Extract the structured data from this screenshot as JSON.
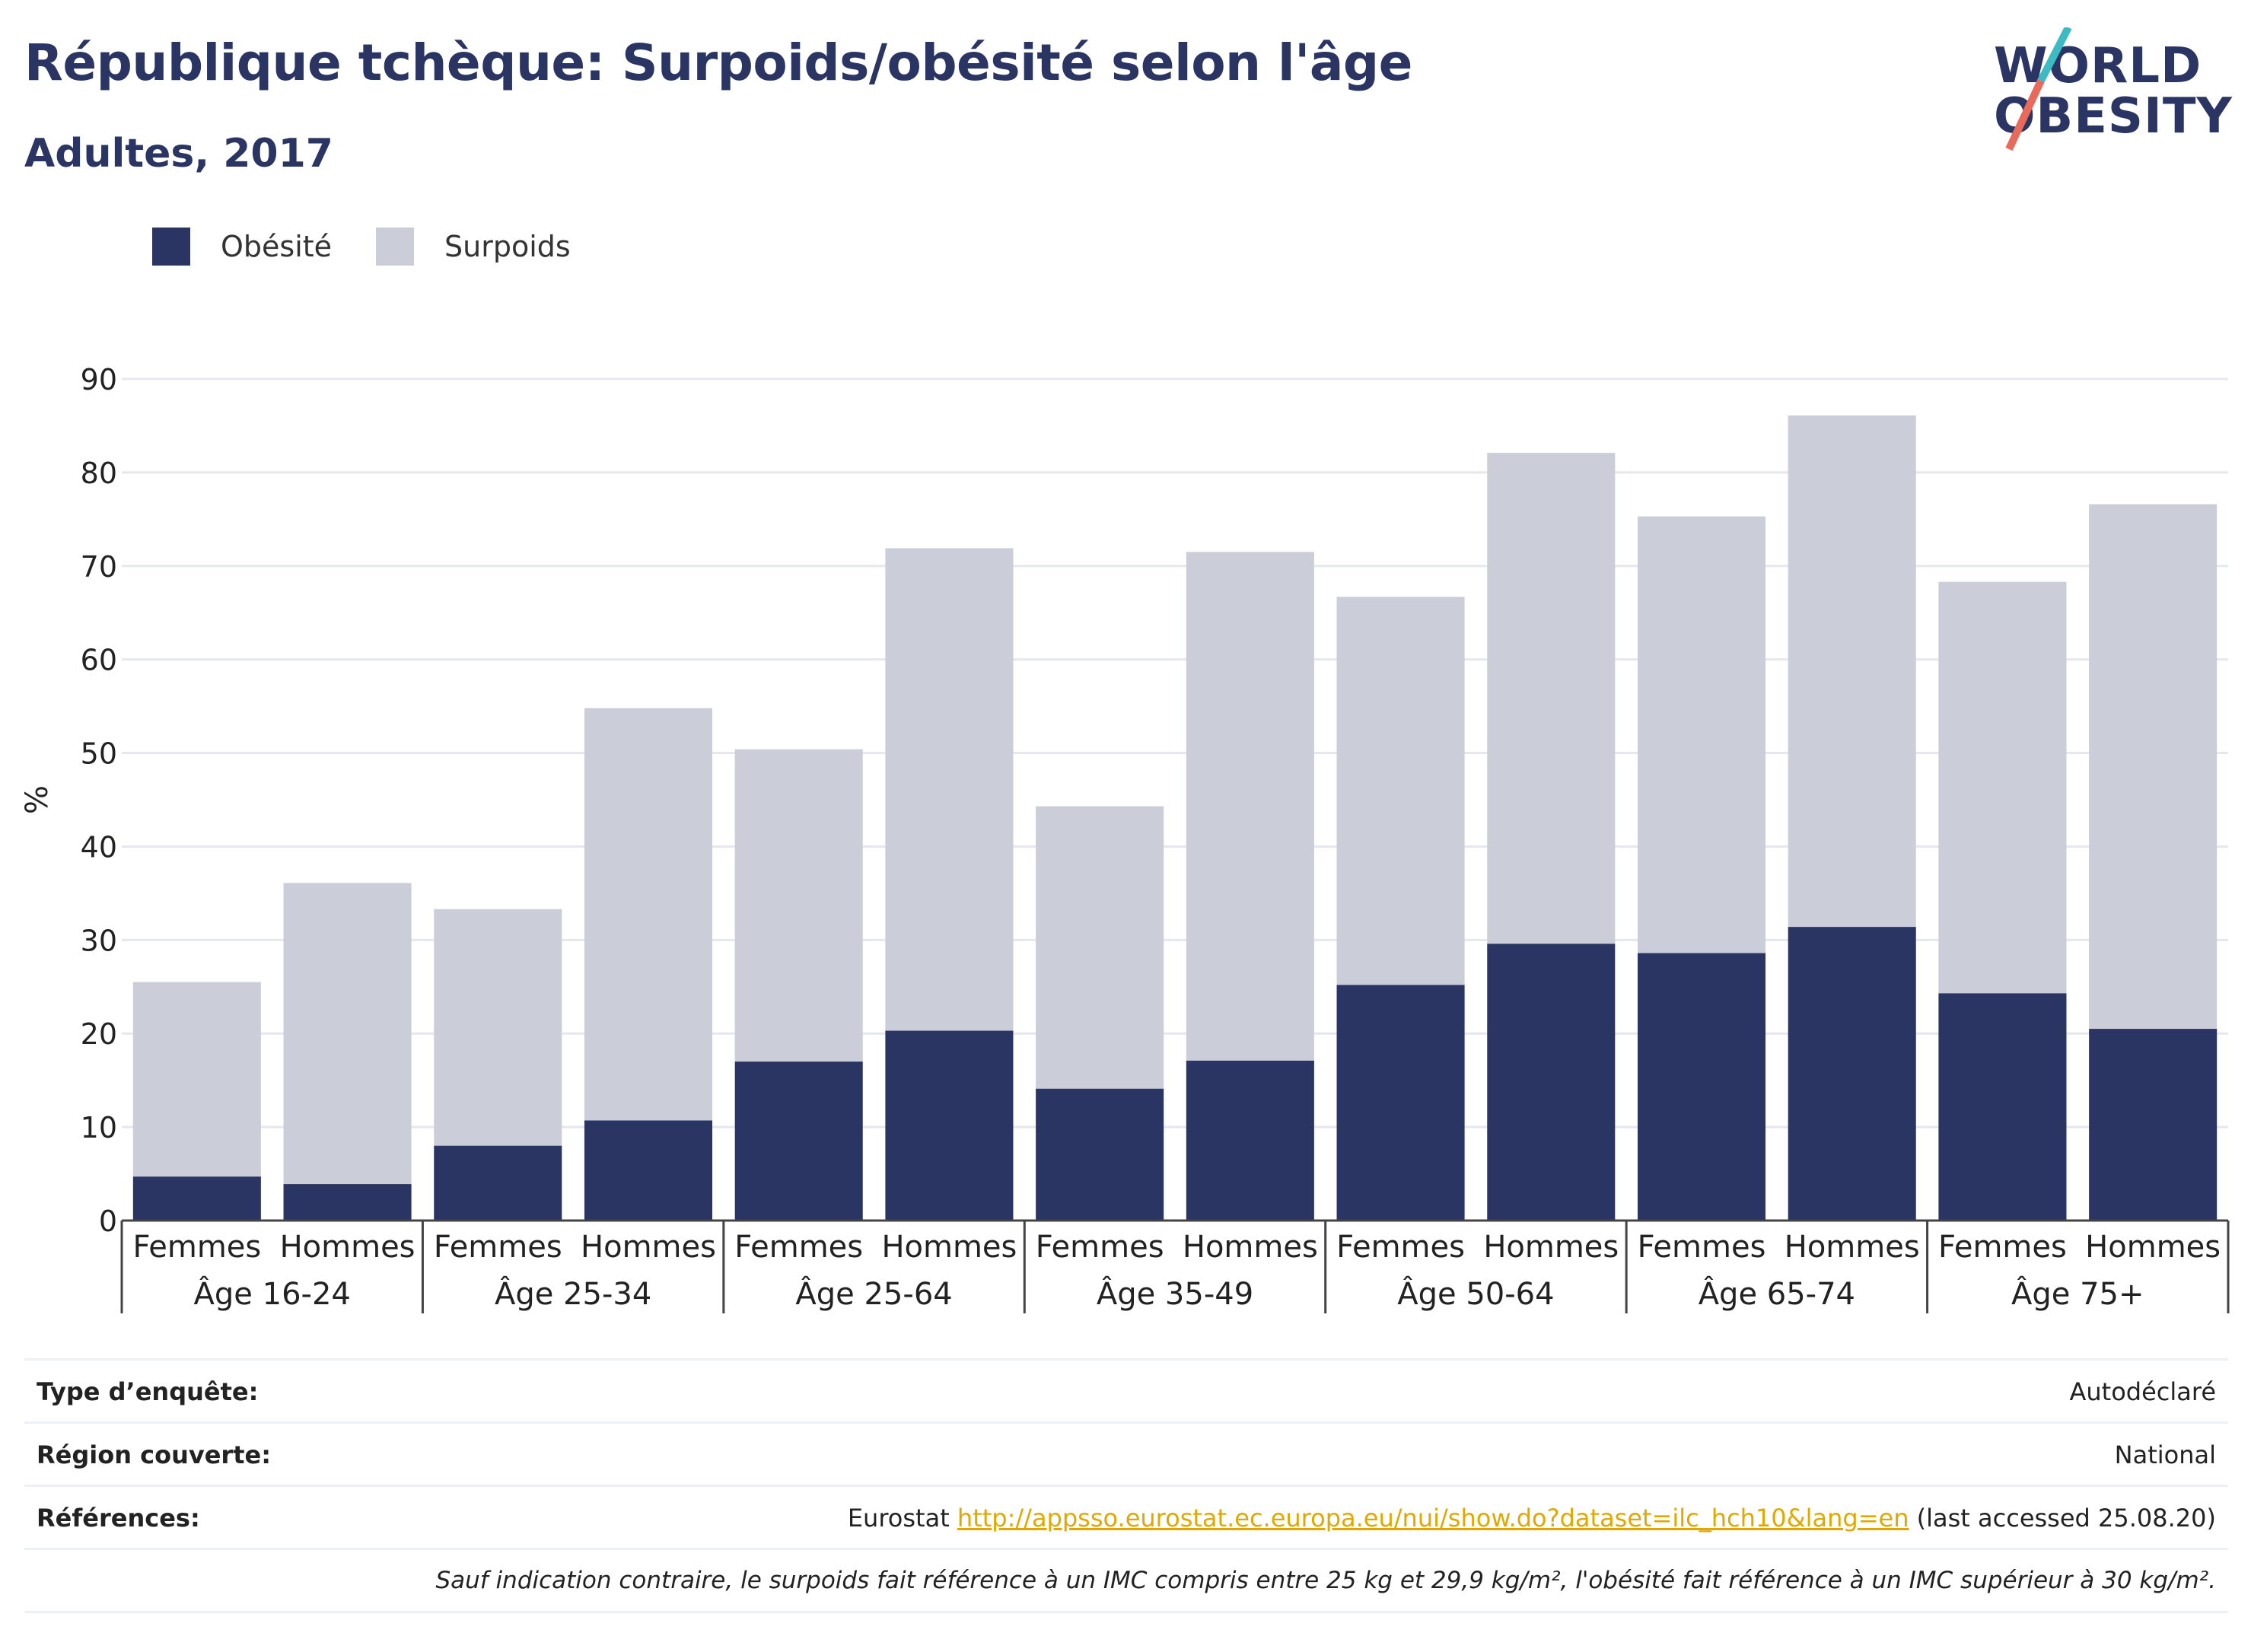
{
  "header": {
    "title": "République tchèque: Surpoids/obésité selon l'âge",
    "subtitle": "Adultes, 2017"
  },
  "logo": {
    "line1": "WORLD",
    "line2": "OBESITY",
    "slash_color_top": "#3dbbc3",
    "slash_color_bottom": "#e86a5a"
  },
  "colors": {
    "obesite": "#2a3563",
    "surpoids": "#cbcdd8",
    "title": "#2a3563",
    "link": "#e0a800"
  },
  "chart_data": {
    "type": "bar",
    "stacked": true,
    "ylabel": "%",
    "ylim": [
      0,
      90
    ],
    "yticks": [
      0,
      10,
      20,
      30,
      40,
      50,
      60,
      70,
      80,
      90
    ],
    "grid": true,
    "legend_position": "top-left",
    "groups": [
      "Âge 16-24",
      "Âge 25-34",
      "Âge 25-64",
      "Âge 35-49",
      "Âge 50-64",
      "Âge 65-74",
      "Âge 75+"
    ],
    "sexes": [
      "Femmes",
      "Hommes"
    ],
    "categories": [
      "Femmes",
      "Hommes",
      "Femmes",
      "Hommes",
      "Femmes",
      "Hommes",
      "Femmes",
      "Hommes",
      "Femmes",
      "Hommes",
      "Femmes",
      "Hommes",
      "Femmes",
      "Hommes"
    ],
    "series": [
      {
        "name": "Obésité",
        "values": [
          4.7,
          3.9,
          8.0,
          10.7,
          17.0,
          20.3,
          14.1,
          17.1,
          25.2,
          29.6,
          28.6,
          31.4,
          24.3,
          20.5
        ]
      },
      {
        "name": "Surpoids",
        "values": [
          20.8,
          32.2,
          25.3,
          44.1,
          33.4,
          51.6,
          30.2,
          54.4,
          41.5,
          52.5,
          46.7,
          54.7,
          44.0,
          56.1
        ]
      }
    ]
  },
  "info": {
    "survey_label": "Type d’enquête:",
    "survey_value": "Autodéclaré",
    "region_label": "Région couverte:",
    "region_value": "National",
    "refs_label": "Références:",
    "refs_prefix": "Eurostat",
    "refs_link": "http://appsso.eurostat.ec.europa.eu/nui/show.do?dataset=ilc_hch10&lang=en",
    "refs_suffix": "(last accessed 25.08.20)",
    "note": "Sauf indication contraire, le surpoids fait référence à un IMC compris entre 25 kg et 29,9 kg/m², l'obésité fait référence à un IMC supérieur à 30 kg/m²."
  }
}
